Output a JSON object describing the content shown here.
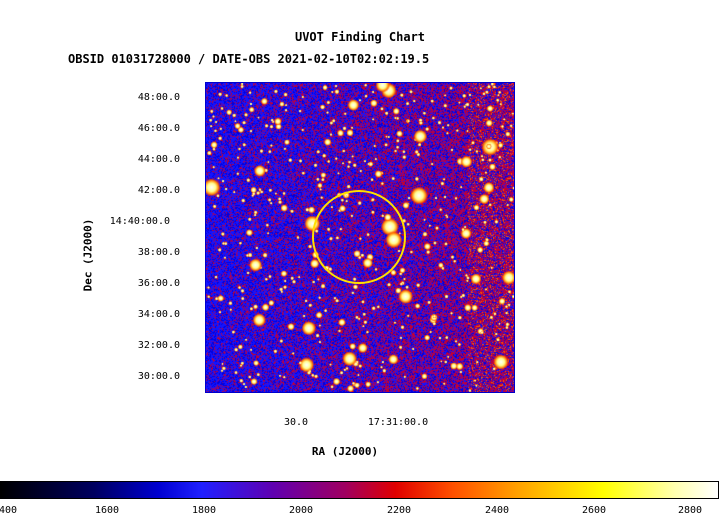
{
  "title": "UVOT Finding Chart",
  "subtitle": "OBSID 01031728000 / DATE-OBS 2021-02-10T02:02:19.5",
  "y_axis": {
    "label": "Dec (J2000)",
    "ticks": [
      "48:00.0",
      "46:00.0",
      "44:00.0",
      "42:00.0",
      "14:40:00.0",
      "38:00.0",
      "36:00.0",
      "34:00.0",
      "32:00.0",
      "30:00.0"
    ]
  },
  "x_axis": {
    "label": "RA (J2000)",
    "ticks": [
      "30.0",
      "17:31:00.0"
    ]
  },
  "colorbar": {
    "ticks": [
      "400",
      "1600",
      "1800",
      "2000",
      "2200",
      "2400",
      "2600",
      "2800"
    ]
  },
  "colors": {
    "frame": "#0000cc",
    "source_circle": "#ffe000"
  }
}
